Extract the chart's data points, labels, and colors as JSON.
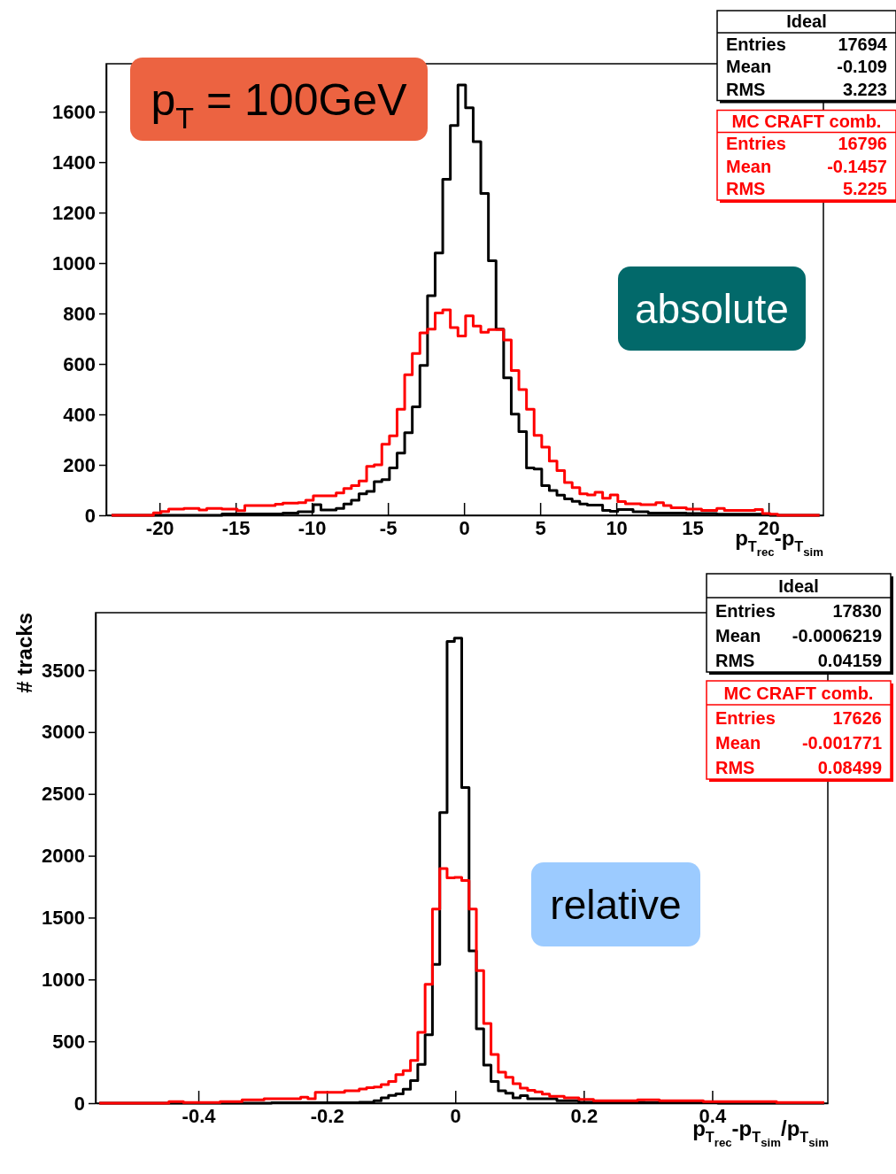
{
  "chart_data": [
    {
      "type": "step",
      "xlabel": "p$_{T}$$_{rec}$-p$_{T}$$_{sim}$",
      "xlim": [
        -23.5,
        23.6
      ],
      "xticks": [
        -20,
        -15,
        -10,
        -5,
        0,
        5,
        10,
        15,
        20
      ],
      "ylim": [
        0,
        1790
      ],
      "yticks": [
        0,
        200,
        400,
        600,
        800,
        1000,
        1200,
        1400,
        1600
      ],
      "legend": "top right",
      "x": [
        -23.15,
        -22.65,
        -22.15,
        -21.65,
        -21.15,
        -20.65,
        -20.15,
        -19.65,
        -19.15,
        -18.65,
        -18.15,
        -17.65,
        -17.15,
        -16.65,
        -16.15,
        -15.65,
        -15.15,
        -14.65,
        -14.15,
        -13.65,
        -13.15,
        -12.65,
        -12.15,
        -11.65,
        -11.15,
        -10.65,
        -10.15,
        -9.65,
        -9.15,
        -8.65,
        -8.15,
        -7.65,
        -7.15,
        -6.65,
        -6.15,
        -5.65,
        -5.15,
        -4.65,
        -4.15,
        -3.65,
        -3.15,
        -2.65,
        -2.15,
        -1.65,
        -1.15,
        -0.65,
        -0.15,
        0.35,
        0.85,
        1.35,
        1.85,
        2.35,
        2.85,
        3.35,
        3.85,
        4.35,
        4.85,
        5.35,
        5.85,
        6.35,
        6.85,
        7.35,
        7.85,
        8.35,
        8.85,
        9.35,
        9.85,
        10.35,
        10.85,
        11.35,
        11.85,
        12.35,
        12.85,
        13.35,
        13.85,
        14.35,
        14.85,
        15.35,
        15.85,
        16.35,
        16.85,
        17.35,
        17.85,
        18.35,
        18.85,
        19.35,
        19.85,
        20.35,
        20.85,
        21.35,
        21.85,
        22.35,
        22.85,
        23.35
      ],
      "series": [
        {
          "name": "Ideal",
          "color": "#000000",
          "values": [
            0,
            0,
            0,
            0,
            0,
            0,
            0,
            0,
            0,
            0,
            0,
            0,
            0,
            0,
            0,
            5,
            5,
            5,
            5,
            5,
            5,
            5,
            5,
            9,
            9,
            14,
            14,
            42,
            21,
            21,
            27,
            45,
            60,
            85,
            95,
            133,
            141,
            188,
            247,
            327,
            430,
            594,
            870,
            1040,
            1332,
            1545,
            1706,
            1615,
            1481,
            1276,
            1009,
            738,
            545,
            401,
            332,
            188,
            183,
            118,
            98,
            80,
            65,
            55,
            45,
            40,
            40,
            19,
            16,
            23,
            23,
            14,
            14,
            9,
            9,
            9,
            9,
            9,
            7,
            7,
            7,
            7,
            4,
            4,
            4,
            4,
            4,
            4,
            4,
            0,
            0,
            0,
            0,
            0,
            0,
            0
          ]
        },
        {
          "name": "MC CRAFT comb.",
          "color": "#ff0000",
          "values": [
            0,
            0,
            0,
            0,
            0,
            0,
            10,
            15,
            25,
            25,
            27,
            27,
            21,
            27,
            27,
            25,
            25,
            18,
            39,
            39,
            39,
            39,
            44,
            48,
            48,
            50,
            60,
            77,
            77,
            77,
            89,
            106,
            118,
            136,
            194,
            200,
            282,
            315,
            420,
            557,
            641,
            723,
            738,
            802,
            814,
            744,
            711,
            791,
            750,
            726,
            736,
            736,
            695,
            574,
            498,
            420,
            317,
            270,
            215,
            177,
            130,
            110,
            85,
            81,
            91,
            68,
            81,
            54,
            46,
            46,
            42,
            42,
            50,
            39,
            30,
            30,
            25,
            25,
            19,
            19,
            27,
            19,
            19,
            19,
            19,
            23,
            7,
            4,
            0,
            0,
            0,
            0,
            0,
            0
          ]
        }
      ],
      "annotations": [
        "p$_{T}$ = 100GeV",
        "absolute",
        "Entries 17694",
        "Mean -0.109",
        "RMS 3.223",
        "Entries 16796",
        "Mean -0.1457",
        "RMS 5.225"
      ]
    },
    {
      "type": "step",
      "xlabel": "p$_{T}$$_{rec}$-p$_{T}$$_{sim}$/p$_{T}$$_{sim}$",
      "ylabel": "# tracks",
      "xlim": [
        -0.56,
        0.58
      ],
      "xticks": [
        -0.4,
        -0.2,
        0,
        0.2,
        0.4
      ],
      "ylim": [
        0,
        3965
      ],
      "yticks": [
        0,
        500,
        1000,
        1500,
        2000,
        2500,
        3000,
        3500
      ],
      "legend": "top right",
      "x": [
        -0.5543,
        -0.5429,
        -0.5315,
        -0.5201,
        -0.5087,
        -0.4973,
        -0.4859,
        -0.4745,
        -0.4631,
        -0.4517,
        -0.4403,
        -0.4289,
        -0.4175,
        -0.4061,
        -0.3947,
        -0.3833,
        -0.3719,
        -0.3605,
        -0.3491,
        -0.3377,
        -0.3263,
        -0.3149,
        -0.3035,
        -0.2921,
        -0.2807,
        -0.2693,
        -0.2579,
        -0.2465,
        -0.2351,
        -0.2237,
        -0.2123,
        -0.2009,
        -0.1895,
        -0.1781,
        -0.1667,
        -0.1553,
        -0.1439,
        -0.1325,
        -0.1211,
        -0.1097,
        -0.0983,
        -0.0869,
        -0.0755,
        -0.0641,
        -0.0527,
        -0.0413,
        -0.0299,
        -0.0185,
        -0.0071,
        0.0043,
        0.0157,
        0.0271,
        0.0385,
        0.0499,
        0.0613,
        0.0727,
        0.0841,
        0.0955,
        0.1069,
        0.1183,
        0.1297,
        0.1411,
        0.1525,
        0.1639,
        0.1753,
        0.1867,
        0.1981,
        0.2095,
        0.2209,
        0.2323,
        0.2437,
        0.2551,
        0.2665,
        0.2779,
        0.2893,
        0.3007,
        0.3121,
        0.3235,
        0.3349,
        0.3463,
        0.3577,
        0.3691,
        0.3805,
        0.3919,
        0.4033,
        0.4147,
        0.4261,
        0.4375,
        0.4489,
        0.4603,
        0.4717,
        0.4831,
        0.4945,
        0.5059,
        0.5173,
        0.5287,
        0.5401,
        0.5515,
        0.5629,
        0.5743
      ],
      "series": [
        {
          "name": "Ideal",
          "color": "#000000",
          "values": [
            0,
            0,
            0,
            0,
            0,
            0,
            0,
            0,
            0,
            0,
            0,
            0,
            0,
            0,
            0,
            0,
            0,
            0,
            0,
            0,
            0,
            0,
            0,
            0,
            4,
            4,
            4,
            4,
            4,
            4,
            4,
            4,
            4,
            4,
            4,
            4,
            7,
            7,
            19,
            43,
            62,
            75,
            112,
            183,
            313,
            552,
            1122,
            2349,
            3732,
            3760,
            2551,
            1231,
            602,
            308,
            175,
            100,
            80,
            43,
            60,
            36,
            36,
            36,
            36,
            19,
            19,
            19,
            7,
            7,
            7,
            7,
            7,
            7,
            7,
            7,
            7,
            4,
            4,
            4,
            4,
            4,
            4,
            4,
            4,
            4,
            4,
            0,
            0,
            0,
            0,
            0,
            0,
            0,
            0,
            0,
            0,
            0,
            0,
            0,
            0,
            0
          ]
        },
        {
          "name": "MC CRAFT comb.",
          "color": "#ff0000",
          "values": [
            0,
            0,
            0,
            0,
            0,
            0,
            0,
            0,
            0,
            0,
            12,
            12,
            5,
            5,
            5,
            5,
            5,
            12,
            12,
            12,
            26,
            26,
            26,
            36,
            36,
            36,
            36,
            36,
            48,
            36,
            88,
            88,
            88,
            88,
            100,
            100,
            115,
            126,
            130,
            150,
            175,
            230,
            263,
            345,
            572,
            961,
            1570,
            1897,
            1822,
            1825,
            1800,
            1570,
            1072,
            645,
            393,
            250,
            210,
            157,
            122,
            103,
            91,
            74,
            55,
            55,
            43,
            43,
            31,
            31,
            19,
            19,
            19,
            19,
            19,
            19,
            26,
            26,
            26,
            19,
            19,
            19,
            19,
            19,
            19,
            12,
            12,
            12,
            12,
            12,
            12,
            12,
            12,
            12,
            12,
            5,
            5,
            5,
            5,
            5,
            5,
            5
          ]
        }
      ],
      "annotations": [
        "relative",
        "Entries 17830",
        "Mean -0.0006219",
        "RMS 0.04159",
        "Entries 17626",
        "Mean -0.001771",
        "RMS 0.08499"
      ]
    }
  ]
}
